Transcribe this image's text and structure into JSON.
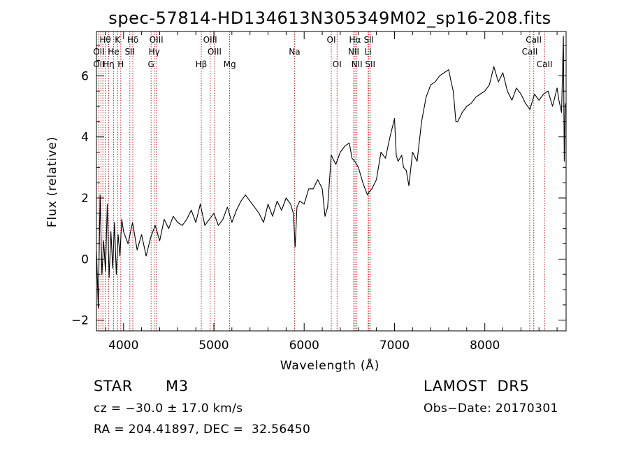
{
  "chart_data": {
    "type": "line",
    "title": "spec-57814-HD134613N305349M02_sp16-208.fits",
    "xlabel": "Wavelength (Å)",
    "ylabel": "Flux (relative)",
    "xlim": [
      3700,
      8900
    ],
    "ylim": [
      -2.35,
      7.45
    ],
    "x_ticks": [
      4000,
      5000,
      6000,
      7000,
      8000
    ],
    "y_ticks": [
      -2,
      0,
      2,
      4,
      6
    ],
    "grid": false,
    "series": [
      {
        "color": "#000000",
        "x": [
          3700,
          3720,
          3740,
          3760,
          3780,
          3800,
          3820,
          3840,
          3860,
          3880,
          3900,
          3920,
          3940,
          3960,
          3980,
          4000,
          4050,
          4100,
          4150,
          4200,
          4250,
          4300,
          4350,
          4400,
          4450,
          4500,
          4550,
          4600,
          4650,
          4700,
          4750,
          4800,
          4850,
          4900,
          4950,
          5000,
          5050,
          5100,
          5150,
          5200,
          5250,
          5300,
          5350,
          5400,
          5450,
          5500,
          5550,
          5600,
          5650,
          5700,
          5750,
          5800,
          5850,
          5880,
          5900,
          5920,
          5950,
          6000,
          6050,
          6100,
          6150,
          6200,
          6230,
          6260,
          6300,
          6350,
          6400,
          6450,
          6500,
          6530,
          6560,
          6600,
          6650,
          6700,
          6720,
          6750,
          6800,
          6850,
          6900,
          6950,
          7000,
          7020,
          7040,
          7060,
          7080,
          7100,
          7130,
          7160,
          7200,
          7250,
          7300,
          7350,
          7400,
          7450,
          7500,
          7550,
          7600,
          7620,
          7650,
          7680,
          7700,
          7750,
          7800,
          7850,
          7900,
          7950,
          8000,
          8050,
          8100,
          8150,
          8200,
          8250,
          8300,
          8350,
          8400,
          8450,
          8500,
          8550,
          8600,
          8650,
          8700,
          8750,
          8800,
          8820,
          8850,
          8870,
          8880,
          8890
        ],
        "y": [
          0.3,
          -1.6,
          2.1,
          -0.5,
          0.6,
          -0.4,
          1.8,
          -0.6,
          0.9,
          -0.3,
          1.2,
          -0.5,
          0.8,
          0.1,
          1.3,
          0.9,
          0.5,
          1.2,
          0.3,
          0.8,
          0.1,
          0.7,
          1.1,
          0.6,
          1.3,
          1.0,
          1.4,
          1.2,
          1.1,
          1.3,
          1.6,
          1.2,
          1.8,
          1.1,
          1.3,
          1.5,
          1.1,
          1.3,
          1.7,
          1.2,
          1.6,
          1.9,
          2.1,
          1.9,
          1.7,
          1.5,
          1.2,
          1.8,
          1.4,
          1.9,
          1.6,
          2.0,
          1.8,
          1.5,
          0.4,
          1.7,
          1.9,
          1.8,
          2.3,
          2.3,
          2.6,
          2.3,
          1.4,
          1.7,
          3.4,
          3.1,
          3.5,
          3.7,
          3.8,
          3.3,
          3.2,
          3.0,
          2.5,
          2.1,
          2.2,
          2.3,
          2.6,
          3.5,
          3.3,
          4.0,
          4.6,
          3.4,
          3.2,
          3.3,
          3.4,
          3.0,
          2.9,
          2.4,
          3.5,
          3.2,
          4.5,
          5.3,
          5.7,
          5.8,
          6.0,
          6.1,
          6.2,
          5.9,
          5.5,
          4.5,
          4.5,
          4.8,
          5.0,
          5.1,
          5.3,
          5.4,
          5.5,
          5.7,
          6.3,
          5.8,
          6.1,
          5.5,
          5.2,
          5.6,
          5.4,
          5.1,
          4.9,
          5.4,
          5.2,
          5.4,
          5.5,
          5.0,
          5.6,
          5.2,
          4.8,
          7.3,
          3.2,
          5.1
        ]
      }
    ],
    "line_labels": [
      {
        "text": "Hθ",
        "x": 3797,
        "row": 1
      },
      {
        "text": "K",
        "x": 3934,
        "row": 1
      },
      {
        "text": "Hδ",
        "x": 4102,
        "row": 1
      },
      {
        "text": "OIII",
        "x": 4363,
        "row": 1
      },
      {
        "text": "OIII",
        "x": 4959,
        "row": 1
      },
      {
        "text": "OI",
        "x": 6300,
        "row": 1
      },
      {
        "text": "Hα",
        "x": 6563,
        "row": 1
      },
      {
        "text": "SII",
        "x": 6716,
        "row": 1
      },
      {
        "text": "CaII",
        "x": 8542,
        "row": 1
      },
      {
        "text": "OII",
        "x": 3727,
        "row": 2
      },
      {
        "text": "He",
        "x": 3889,
        "row": 2
      },
      {
        "text": "SII",
        "x": 4070,
        "row": 2
      },
      {
        "text": "Hγ",
        "x": 4340,
        "row": 2
      },
      {
        "text": "OIII",
        "x": 5007,
        "row": 2
      },
      {
        "text": "Na",
        "x": 5893,
        "row": 2
      },
      {
        "text": "NII",
        "x": 6548,
        "row": 2
      },
      {
        "text": "Li",
        "x": 6708,
        "row": 2
      },
      {
        "text": "CaII",
        "x": 8498,
        "row": 2
      },
      {
        "text": "OII",
        "x": 3727,
        "row": 3
      },
      {
        "text": "Hη",
        "x": 3835,
        "row": 3
      },
      {
        "text": "H",
        "x": 3969,
        "row": 3
      },
      {
        "text": "G",
        "x": 4305,
        "row": 3
      },
      {
        "text": "Hβ",
        "x": 4861,
        "row": 3
      },
      {
        "text": "Mg",
        "x": 5175,
        "row": 3
      },
      {
        "text": "OI",
        "x": 6364,
        "row": 3
      },
      {
        "text": "NII",
        "x": 6583,
        "row": 3
      },
      {
        "text": "SII",
        "x": 6731,
        "row": 3
      },
      {
        "text": "CaII",
        "x": 8662,
        "row": 3
      }
    ],
    "line_positions": [
      3727,
      3750,
      3771,
      3797,
      3835,
      3889,
      3934,
      3969,
      4070,
      4102,
      4305,
      4340,
      4363,
      4861,
      4959,
      5007,
      5175,
      5893,
      6300,
      6364,
      6548,
      6563,
      6583,
      6708,
      6716,
      6731,
      8498,
      8542,
      8662
    ]
  },
  "footer": {
    "class_label": "STAR",
    "subclass": "M3",
    "survey": "LAMOST  DR5",
    "cz": "cz = −30.0 ± 17.0 km/s",
    "obs_date": "Obs−Date: 20170301",
    "coords": "RA = 204.41897, DEC =  32.56450"
  }
}
